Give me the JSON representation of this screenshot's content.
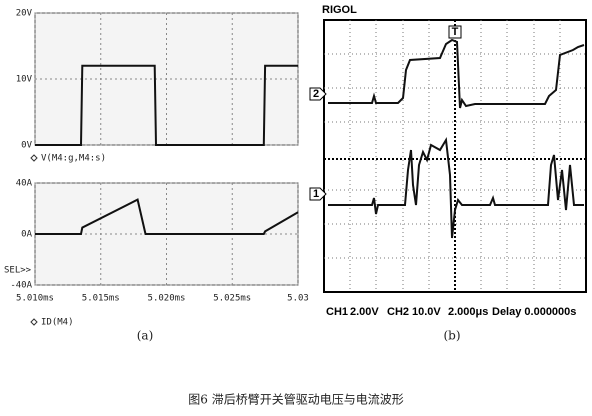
{
  "chart_data": [
    {
      "type": "line",
      "x": [
        5.01,
        5.0135,
        5.0136,
        5.0191,
        5.0192,
        5.0274,
        5.0275,
        5.03
      ],
      "series": [
        {
          "name": "V(M4:g,M4:s)",
          "color": "#111111",
          "values": [
            0,
            0,
            12,
            12,
            0,
            0,
            12,
            12
          ]
        }
      ],
      "xlim": [
        5.01,
        5.03
      ],
      "ylim": [
        0,
        20
      ],
      "yticks": [
        {
          "value": 0,
          "label": "0V"
        },
        {
          "value": 10,
          "label": "10V"
        },
        {
          "value": 20,
          "label": "20V"
        }
      ],
      "grid": true
    },
    {
      "type": "line",
      "x": [
        5.01,
        5.0135,
        5.0136,
        5.0178,
        5.0184,
        5.0274,
        5.0275,
        5.03
      ],
      "series": [
        {
          "name": "ID(M4)",
          "color": "#111111",
          "values": [
            0,
            0,
            5,
            27,
            0,
            0,
            2,
            17
          ]
        }
      ],
      "xlim": [
        5.01,
        5.03
      ],
      "xticks": [
        {
          "value": 5.01,
          "label": "5.010ms"
        },
        {
          "value": 5.015,
          "label": "5.015ms"
        },
        {
          "value": 5.02,
          "label": "5.020ms"
        },
        {
          "value": 5.025,
          "label": "5.025ms"
        },
        5.03
      ],
      "ylim": [
        -40,
        40
      ],
      "yticks": [
        {
          "value": -40,
          "label": "-40A"
        },
        {
          "value": 0,
          "label": "0A"
        },
        {
          "value": 40,
          "label": "40A"
        }
      ],
      "annotation": "SEL>>",
      "grid": true
    }
  ],
  "panel_b": {
    "brand": "RIGOL",
    "trigger_marker": "T",
    "channel_markers": [
      "2",
      "1"
    ],
    "settings": [
      "CH1",
      "2.00V",
      "CH2",
      "10.0V",
      "2.000μs",
      "Delay 0.000000s"
    ]
  },
  "captions": {
    "a": "(a)",
    "b": "(b)",
    "figure": "图6  滞后桥臂开关管驱动电压与电流波形"
  }
}
